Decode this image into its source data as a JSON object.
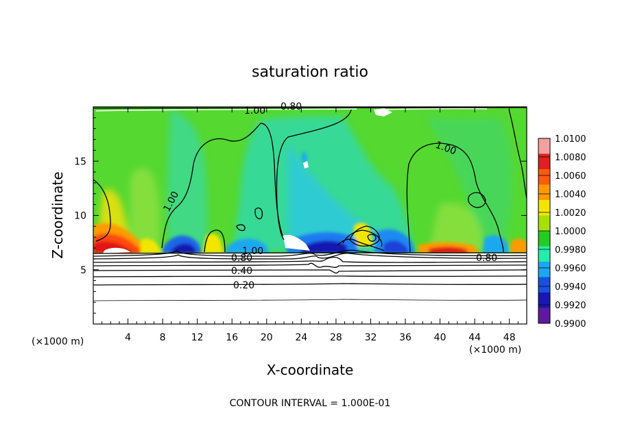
{
  "chart_data": {
    "type": "heatmap",
    "title": "saturation ratio",
    "xlabel": "X-coordinate",
    "ylabel": "Z-coordinate",
    "x_unit": "(×1000 m)",
    "y_unit": "(×1000 m)",
    "xlim": [
      0,
      50
    ],
    "ylim": [
      0,
      20
    ],
    "x_ticks": [
      4,
      8,
      12,
      16,
      20,
      24,
      28,
      32,
      36,
      40,
      44,
      48
    ],
    "y_ticks": [
      5,
      10,
      15
    ],
    "footer": "CONTOUR INTERVAL = 1.000E-01",
    "colorbar": {
      "levels": [
        "1.0100",
        "1.0080",
        "1.0060",
        "1.0040",
        "1.0020",
        "1.0000",
        "0.9980",
        "0.9960",
        "0.9940",
        "0.9920",
        "0.9900"
      ],
      "colors": [
        "#f4a0a0",
        "#e02020",
        "#ff5a10",
        "#ff9a00",
        "#f2e600",
        "#a8e000",
        "#22cc22",
        "#22eeaa",
        "#1aa8f0",
        "#1a50e0",
        "#1818b0",
        "#6018a0"
      ]
    },
    "contour_labels": [
      {
        "text": "1.00",
        "x": 18.8,
        "z": 19.3
      },
      {
        "text": "0.80",
        "x": 23.3,
        "z": 19.6
      },
      {
        "text": "1.00",
        "x": 41.2,
        "z": 16.3
      },
      {
        "text": "1.00",
        "x": 9.2,
        "z": 10.8
      },
      {
        "text": "1.00",
        "x": 18.2,
        "z": 6.5
      },
      {
        "text": "0.80",
        "x": 17.6,
        "z": 5.9
      },
      {
        "text": "0.80",
        "x": 45.2,
        "z": 5.9
      },
      {
        "text": "0.40",
        "x": 17.4,
        "z": 4.9
      },
      {
        "text": "0.20",
        "x": 17.5,
        "z": 3.6
      }
    ]
  }
}
